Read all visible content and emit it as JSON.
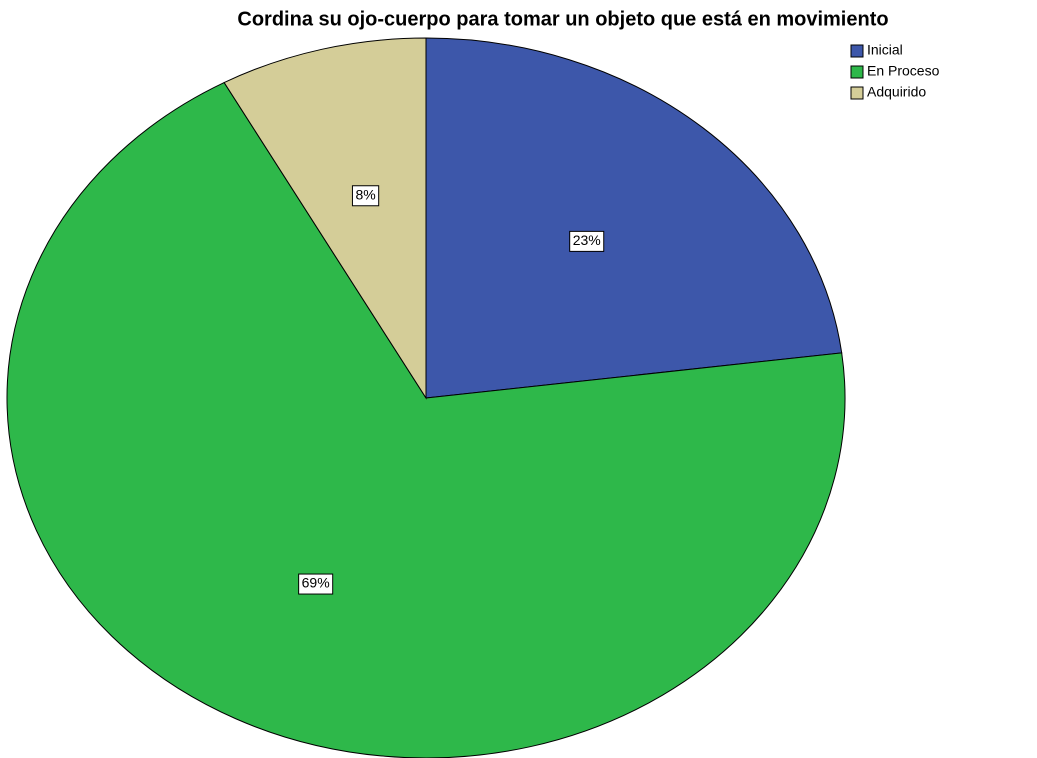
{
  "chart_data": {
    "type": "pie",
    "title": "Cordina su ojo-cuerpo para tomar un objeto que está en movimiento",
    "categories": [
      "Inicial",
      "En Proceso",
      "Adquirido"
    ],
    "values": [
      23,
      69,
      8
    ],
    "value_labels": [
      "23%",
      "69%",
      "8%"
    ],
    "colors": [
      "#3d57aa",
      "#2eb84a",
      "#d4cd98"
    ],
    "legend": "top-right"
  }
}
